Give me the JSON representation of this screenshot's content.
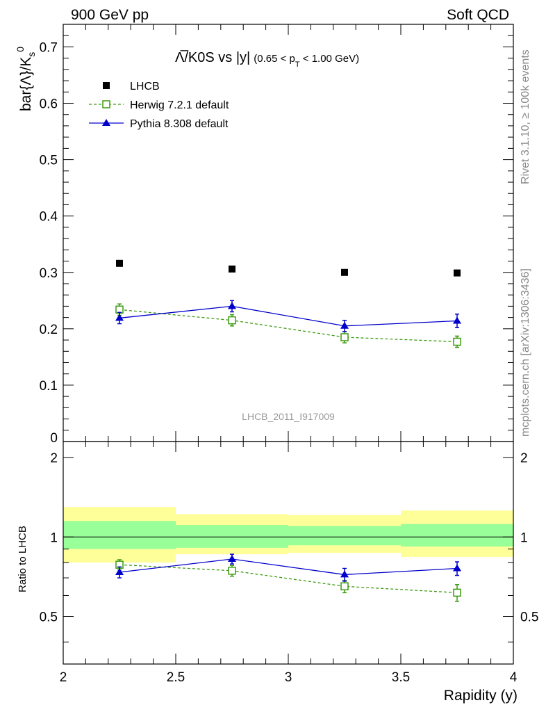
{
  "header": {
    "left": "900 GeV pp",
    "right": "Soft QCD"
  },
  "side_labels": {
    "top": "Rivet 3.1.10, ≥ 100k events",
    "bottom": "mcplots.cern.ch [arXiv:1306:3436]"
  },
  "chart_data": {
    "type": "scatter",
    "title": "Λ̅/K0S vs |y|",
    "title_suffix": "(0.65 < p",
    "title_suffix_sub": "T",
    "title_suffix_end": " < 1.00 GeV)",
    "ylabel_main": "bar{Λ}/K",
    "ylabel_main_sub": "s",
    "ylabel_main_sup": "0",
    "ylabel_ratio": "Ratio to LHCB",
    "xlabel": "Rapidity (y)",
    "watermark": "LHCB_2011_I917009",
    "xlim": [
      2,
      4
    ],
    "ylim_main": [
      0,
      0.74
    ],
    "ylim_ratio": [
      0.33,
      2.3
    ],
    "x_ticks": [
      "2",
      "2.5",
      "3",
      "3.5",
      "4"
    ],
    "y_ticks_main": [
      "0.1",
      "0.2",
      "0.3",
      "0.4",
      "0.5",
      "0.6",
      "0.7"
    ],
    "y_tick_main_zero": "0",
    "y_ticks_ratio": [
      "0.5",
      "1",
      "2"
    ],
    "bins": [
      [
        2,
        2.5
      ],
      [
        2.5,
        3
      ],
      [
        3,
        3.5
      ],
      [
        3.5,
        4
      ]
    ],
    "x": [
      2.25,
      2.75,
      3.25,
      3.75
    ],
    "series": [
      {
        "name": "LHCB",
        "color": "#000000",
        "values": [
          0.316,
          0.306,
          0.3,
          0.299
        ],
        "errors": [
          0.003,
          0.003,
          0.003,
          0.003
        ],
        "ratio_band_inner": [
          [
            0.9,
            1.15
          ],
          [
            0.91,
            1.11
          ],
          [
            0.93,
            1.1
          ],
          [
            0.92,
            1.12
          ]
        ],
        "ratio_band_outer": [
          [
            0.8,
            1.3
          ],
          [
            0.86,
            1.22
          ],
          [
            0.87,
            1.21
          ],
          [
            0.84,
            1.26
          ]
        ]
      },
      {
        "name": "Herwig 7.2.1 default",
        "color": "#3c9a10",
        "values": [
          0.234,
          0.215,
          0.185,
          0.177
        ],
        "errors": [
          0.01,
          0.01,
          0.01,
          0.01
        ],
        "ratio": [
          0.785,
          0.745,
          0.65,
          0.615
        ],
        "ratio_errors": [
          0.035,
          0.035,
          0.035,
          0.045
        ]
      },
      {
        "name": "Pythia 8.308 default",
        "color": "#0000cc",
        "values": [
          0.219,
          0.24,
          0.205,
          0.214
        ],
        "errors": [
          0.01,
          0.01,
          0.01,
          0.012
        ],
        "ratio": [
          0.735,
          0.825,
          0.72,
          0.76
        ],
        "ratio_errors": [
          0.035,
          0.035,
          0.04,
          0.045
        ]
      }
    ],
    "legend_position": "top-left",
    "grid": false
  }
}
